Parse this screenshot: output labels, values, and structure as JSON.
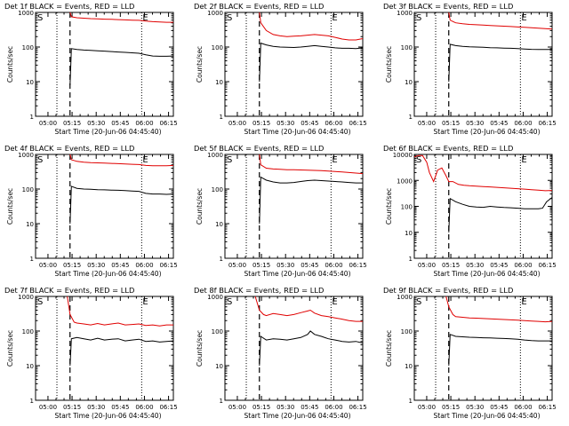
{
  "colors": {
    "events": "#000000",
    "lld": "#e00000",
    "frame": "#000000",
    "background": "#ffffff"
  },
  "chart_data": [
    {
      "type": "line",
      "title": "Det 1f BLACK = Events, RED = LLD",
      "xlabel": "Start Time (20-Jun-06 04:45:40)",
      "ylabel": "Counts/sec",
      "log_y": true,
      "ylim": [
        1,
        1000
      ],
      "ytick_labels": [
        "1",
        "10",
        "100",
        "1000"
      ],
      "xtick_labels": [
        "05:00",
        "05:15",
        "05:30",
        "05:45",
        "06:00",
        "06:15"
      ],
      "markers": {
        "left": "S",
        "right": "E"
      },
      "lines_x": {
        "dotted": [
          0.155,
          0.77
        ],
        "dashed": 0.25
      },
      "series": [
        {
          "name": "Events",
          "color": "black",
          "x": [
            0.25,
            0.26,
            0.3,
            0.35,
            0.4,
            0.45,
            0.5,
            0.55,
            0.6,
            0.65,
            0.7,
            0.75,
            0.8,
            0.85,
            0.9,
            0.95,
            1.0
          ],
          "y": [
            8,
            90,
            85,
            82,
            80,
            78,
            76,
            74,
            72,
            70,
            68,
            66,
            60,
            55,
            54,
            54,
            55
          ]
        },
        {
          "name": "LLD",
          "color": "red",
          "x": [
            0.25,
            0.26,
            0.3,
            0.35,
            0.4,
            0.45,
            0.5,
            0.55,
            0.6,
            0.65,
            0.7,
            0.75,
            0.8,
            0.85,
            0.9,
            0.95,
            1.0
          ],
          "y": [
            1000,
            750,
            700,
            680,
            660,
            650,
            640,
            630,
            620,
            610,
            600,
            590,
            560,
            540,
            530,
            520,
            520
          ]
        }
      ]
    },
    {
      "type": "line",
      "title": "Det 2f BLACK = Events, RED = LLD",
      "xlabel": "Start Time (20-Jun-06 04:45:40)",
      "ylabel": "Counts/sec",
      "log_y": true,
      "ylim": [
        1,
        1000
      ],
      "ytick_labels": [
        "1",
        "10",
        "100",
        "1000"
      ],
      "xtick_labels": [
        "05:00",
        "05:15",
        "05:30",
        "05:45",
        "06:00",
        "06:15"
      ],
      "markers": {
        "left": "S",
        "right": "E"
      },
      "lines_x": {
        "dotted": [
          0.155,
          0.77
        ],
        "dashed": 0.25
      },
      "series": [
        {
          "name": "Events",
          "color": "black",
          "x": [
            0.25,
            0.26,
            0.3,
            0.35,
            0.4,
            0.45,
            0.5,
            0.55,
            0.6,
            0.65,
            0.7,
            0.75,
            0.8,
            0.85,
            0.9,
            0.95,
            1.0
          ],
          "y": [
            10,
            130,
            115,
            105,
            100,
            98,
            97,
            100,
            105,
            110,
            105,
            100,
            95,
            92,
            92,
            90,
            95
          ]
        },
        {
          "name": "LLD",
          "color": "red",
          "x": [
            0.25,
            0.26,
            0.3,
            0.35,
            0.4,
            0.45,
            0.5,
            0.55,
            0.6,
            0.65,
            0.7,
            0.75,
            0.8,
            0.85,
            0.9,
            0.95,
            1.0
          ],
          "y": [
            1000,
            500,
            300,
            230,
            210,
            200,
            205,
            210,
            220,
            230,
            220,
            210,
            190,
            170,
            160,
            160,
            175
          ]
        }
      ]
    },
    {
      "type": "line",
      "title": "Det 3f BLACK = Events, RED = LLD",
      "xlabel": "Start Time (20-Jun-06 04:45:40)",
      "ylabel": "Counts/sec",
      "log_y": true,
      "ylim": [
        1,
        1000
      ],
      "ytick_labels": [
        "1",
        "10",
        "100",
        "1000"
      ],
      "xtick_labels": [
        "05:00",
        "05:15",
        "05:30",
        "05:45",
        "06:00",
        "06:15"
      ],
      "markers": {
        "left": "S",
        "right": "E"
      },
      "lines_x": {
        "dotted": [
          0.155,
          0.77
        ],
        "dashed": 0.25
      },
      "series": [
        {
          "name": "Events",
          "color": "black",
          "x": [
            0.25,
            0.26,
            0.3,
            0.35,
            0.4,
            0.45,
            0.5,
            0.55,
            0.6,
            0.65,
            0.7,
            0.75,
            0.8,
            0.85,
            0.9,
            0.95,
            1.0
          ],
          "y": [
            10,
            120,
            110,
            105,
            102,
            100,
            98,
            96,
            95,
            93,
            92,
            90,
            88,
            86,
            85,
            85,
            85
          ]
        },
        {
          "name": "LLD",
          "color": "red",
          "x": [
            0.25,
            0.26,
            0.3,
            0.35,
            0.4,
            0.45,
            0.5,
            0.55,
            0.6,
            0.65,
            0.7,
            0.75,
            0.8,
            0.85,
            0.9,
            0.95,
            1.0
          ],
          "y": [
            1000,
            600,
            500,
            470,
            450,
            440,
            430,
            420,
            410,
            400,
            390,
            380,
            370,
            360,
            350,
            340,
            330
          ]
        }
      ]
    },
    {
      "type": "line",
      "title": "Det 4f BLACK = Events, RED = LLD",
      "xlabel": "Start Time (20-Jun-06 04:45:40)",
      "ylabel": "Counts/sec",
      "log_y": true,
      "ylim": [
        1,
        1000
      ],
      "ytick_labels": [
        "1",
        "10",
        "100",
        "1000"
      ],
      "xtick_labels": [
        "05:00",
        "05:15",
        "05:30",
        "05:45",
        "06:00",
        "06:15"
      ],
      "markers": {
        "left": "S",
        "right": "E"
      },
      "lines_x": {
        "dotted": [
          0.155,
          0.77
        ],
        "dashed": 0.25
      },
      "series": [
        {
          "name": "Events",
          "color": "black",
          "x": [
            0.25,
            0.26,
            0.3,
            0.35,
            0.4,
            0.45,
            0.5,
            0.55,
            0.6,
            0.65,
            0.7,
            0.75,
            0.8,
            0.85,
            0.9,
            0.95,
            1.0
          ],
          "y": [
            10,
            120,
            105,
            100,
            98,
            96,
            95,
            93,
            92,
            90,
            88,
            86,
            75,
            72,
            72,
            70,
            72
          ]
        },
        {
          "name": "LLD",
          "color": "red",
          "x": [
            0.25,
            0.26,
            0.3,
            0.35,
            0.4,
            0.45,
            0.5,
            0.55,
            0.6,
            0.65,
            0.7,
            0.75,
            0.8,
            0.85,
            0.9,
            0.95,
            1.0
          ],
          "y": [
            1000,
            700,
            630,
            600,
            580,
            570,
            560,
            550,
            540,
            530,
            520,
            510,
            480,
            470,
            470,
            470,
            480
          ]
        }
      ]
    },
    {
      "type": "line",
      "title": "Det 5f BLACK = Events, RED = LLD",
      "xlabel": "Start Time (20-Jun-06 04:45:40)",
      "ylabel": "Counts/sec",
      "log_y": true,
      "ylim": [
        1,
        1000
      ],
      "ytick_labels": [
        "1",
        "10",
        "100",
        "1000"
      ],
      "xtick_labels": [
        "05:00",
        "05:15",
        "05:30",
        "05:45",
        "06:00",
        "06:15"
      ],
      "markers": {
        "left": "S",
        "right": "E"
      },
      "lines_x": {
        "dotted": [
          0.155,
          0.77
        ],
        "dashed": 0.25
      },
      "series": [
        {
          "name": "Events",
          "color": "black",
          "x": [
            0.25,
            0.26,
            0.3,
            0.35,
            0.4,
            0.45,
            0.5,
            0.55,
            0.6,
            0.65,
            0.7,
            0.75,
            0.8,
            0.85,
            0.9,
            0.95,
            1.0
          ],
          "y": [
            10,
            220,
            180,
            160,
            150,
            150,
            155,
            165,
            175,
            180,
            175,
            170,
            165,
            160,
            155,
            150,
            150
          ]
        },
        {
          "name": "LLD",
          "color": "red",
          "x": [
            0.25,
            0.26,
            0.3,
            0.35,
            0.4,
            0.45,
            0.5,
            0.55,
            0.6,
            0.65,
            0.7,
            0.75,
            0.8,
            0.85,
            0.9,
            0.95,
            1.0
          ],
          "y": [
            1000,
            500,
            400,
            380,
            370,
            360,
            360,
            355,
            350,
            345,
            340,
            330,
            320,
            310,
            300,
            290,
            280
          ]
        }
      ]
    },
    {
      "type": "line",
      "title": "Det 6f BLACK = Events, RED = LLD",
      "xlabel": "Start Time (20-Jun-06 04:45:40)",
      "ylabel": "Counts/sec",
      "log_y": true,
      "ylim": [
        1,
        10000
      ],
      "ytick_labels": [
        "1",
        "10",
        "100",
        "1000",
        "10000"
      ],
      "xtick_labels": [
        "05:00",
        "05:15",
        "05:30",
        "05:45",
        "06:00",
        "06:15"
      ],
      "markers": {
        "left": "S",
        "right": "E"
      },
      "lines_x": {
        "dotted": [
          0.155,
          0.77
        ],
        "dashed": 0.25
      },
      "series": [
        {
          "name": "Events",
          "color": "black",
          "x": [
            0.25,
            0.26,
            0.3,
            0.35,
            0.4,
            0.45,
            0.5,
            0.55,
            0.6,
            0.65,
            0.7,
            0.75,
            0.8,
            0.85,
            0.9,
            0.93,
            0.96,
            1.0
          ],
          "y": [
            10,
            200,
            150,
            120,
            100,
            95,
            92,
            100,
            95,
            90,
            88,
            85,
            80,
            80,
            80,
            85,
            150,
            220
          ]
        },
        {
          "name": "LLD",
          "color": "red",
          "x": [
            0.0,
            0.03,
            0.06,
            0.09,
            0.11,
            0.14,
            0.17,
            0.2,
            0.23,
            0.25,
            0.28,
            0.32,
            0.36,
            0.4,
            0.45,
            0.5,
            0.55,
            0.6,
            0.65,
            0.7,
            0.75,
            0.8,
            0.85,
            0.9,
            0.95,
            1.0
          ],
          "y": [
            8000,
            9000,
            9000,
            5000,
            2000,
            900,
            2500,
            3000,
            1500,
            900,
            900,
            700,
            650,
            620,
            600,
            580,
            560,
            540,
            520,
            500,
            480,
            460,
            440,
            420,
            400,
            410
          ]
        }
      ]
    },
    {
      "type": "line",
      "title": "Det 7f BLACK = Events, RED = LLD",
      "xlabel": "Start Time (20-Jun-06 04:45:40)",
      "ylabel": "Counts/sec",
      "log_y": true,
      "ylim": [
        1,
        1000
      ],
      "ytick_labels": [
        "1",
        "10",
        "100",
        "1000"
      ],
      "xtick_labels": [
        "05:00",
        "05:15",
        "05:30",
        "05:45",
        "06:00",
        "06:15"
      ],
      "markers": {
        "left": "S",
        "right": "E"
      },
      "lines_x": {
        "dotted": [
          0.155,
          0.77
        ],
        "dashed": 0.25
      },
      "series": [
        {
          "name": "Events",
          "color": "black",
          "x": [
            0.25,
            0.26,
            0.3,
            0.35,
            0.4,
            0.45,
            0.5,
            0.55,
            0.6,
            0.65,
            0.7,
            0.75,
            0.8,
            0.85,
            0.9,
            0.95,
            1.0
          ],
          "y": [
            10,
            60,
            65,
            60,
            55,
            62,
            55,
            58,
            60,
            52,
            55,
            58,
            50,
            52,
            48,
            50,
            52
          ]
        },
        {
          "name": "LLD",
          "color": "red",
          "x": [
            0.23,
            0.25,
            0.28,
            0.3,
            0.35,
            0.4,
            0.45,
            0.5,
            0.55,
            0.6,
            0.65,
            0.7,
            0.75,
            0.8,
            0.85,
            0.9,
            0.95,
            1.0
          ],
          "y": [
            1000,
            300,
            180,
            170,
            160,
            150,
            165,
            150,
            160,
            170,
            150,
            155,
            160,
            145,
            150,
            140,
            150,
            150
          ]
        }
      ]
    },
    {
      "type": "line",
      "title": "Det 8f BLACK = Events, RED = LLD",
      "xlabel": "Start Time (20-Jun-06 04:45:40)",
      "ylabel": "Counts/sec",
      "log_y": true,
      "ylim": [
        1,
        1000
      ],
      "ytick_labels": [
        "1",
        "10",
        "100",
        "1000"
      ],
      "xtick_labels": [
        "05:00",
        "05:15",
        "05:30",
        "05:45",
        "06:00",
        "06:15"
      ],
      "markers": {
        "left": "S",
        "right": "E"
      },
      "lines_x": {
        "dotted": [
          0.155,
          0.77
        ],
        "dashed": 0.25
      },
      "series": [
        {
          "name": "Events",
          "color": "black",
          "x": [
            0.25,
            0.26,
            0.3,
            0.35,
            0.4,
            0.45,
            0.5,
            0.55,
            0.6,
            0.62,
            0.65,
            0.7,
            0.75,
            0.8,
            0.85,
            0.9,
            0.95,
            1.0
          ],
          "y": [
            10,
            70,
            55,
            60,
            58,
            55,
            60,
            65,
            80,
            100,
            80,
            70,
            60,
            55,
            50,
            48,
            50,
            45
          ]
        },
        {
          "name": "LLD",
          "color": "red",
          "x": [
            0.22,
            0.25,
            0.28,
            0.3,
            0.35,
            0.4,
            0.45,
            0.5,
            0.55,
            0.6,
            0.62,
            0.65,
            0.7,
            0.75,
            0.8,
            0.85,
            0.9,
            0.95,
            1.0
          ],
          "y": [
            1000,
            400,
            300,
            280,
            320,
            300,
            280,
            300,
            340,
            380,
            400,
            330,
            280,
            260,
            240,
            220,
            200,
            190,
            190
          ]
        }
      ]
    },
    {
      "type": "line",
      "title": "Det 9f BLACK = Events, RED = LLD",
      "xlabel": "Start Time (20-Jun-06 04:45:40)",
      "ylabel": "Counts/sec",
      "log_y": true,
      "ylim": [
        1,
        1000
      ],
      "ytick_labels": [
        "1",
        "10",
        "100",
        "1000"
      ],
      "xtick_labels": [
        "05:00",
        "05:15",
        "05:30",
        "05:45",
        "06:00",
        "06:15"
      ],
      "markers": {
        "left": "S",
        "right": "E"
      },
      "lines_x": {
        "dotted": [
          0.155,
          0.77
        ],
        "dashed": 0.25
      },
      "series": [
        {
          "name": "Events",
          "color": "black",
          "x": [
            0.25,
            0.26,
            0.3,
            0.35,
            0.4,
            0.45,
            0.5,
            0.55,
            0.6,
            0.65,
            0.7,
            0.75,
            0.8,
            0.85,
            0.9,
            0.95,
            1.0
          ],
          "y": [
            10,
            80,
            70,
            68,
            66,
            65,
            64,
            63,
            62,
            61,
            60,
            58,
            55,
            53,
            52,
            52,
            52
          ]
        },
        {
          "name": "LLD",
          "color": "red",
          "x": [
            0.23,
            0.25,
            0.28,
            0.3,
            0.35,
            0.4,
            0.45,
            0.5,
            0.55,
            0.6,
            0.65,
            0.7,
            0.75,
            0.8,
            0.85,
            0.9,
            0.95,
            1.0
          ],
          "y": [
            1000,
            500,
            300,
            260,
            250,
            240,
            235,
            230,
            225,
            220,
            215,
            210,
            205,
            200,
            195,
            190,
            185,
            190
          ]
        }
      ]
    }
  ]
}
